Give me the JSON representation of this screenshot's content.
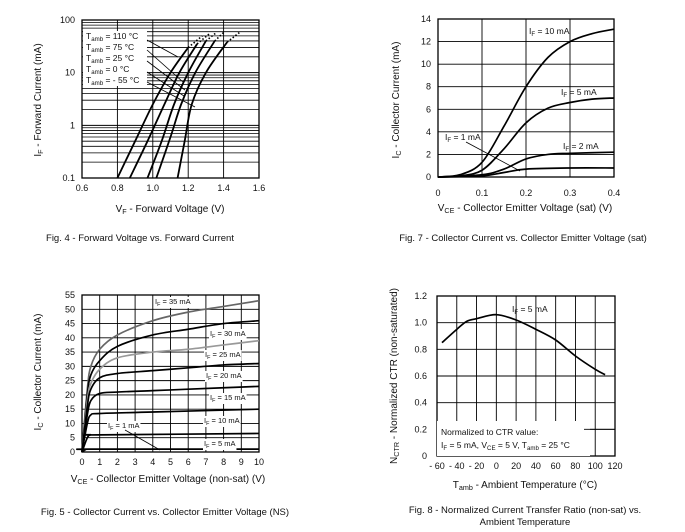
{
  "chart_data": [
    {
      "id": "fig4",
      "type": "line",
      "title": "Fig. 4 - Forward Voltage vs. Forward Current",
      "xlabel": [
        {
          "t": "V"
        },
        {
          "t": "F",
          "sub": true
        },
        {
          "t": " - Forward Voltage (V)"
        }
      ],
      "ylabel": [
        {
          "t": "I"
        },
        {
          "t": "F",
          "sub": true
        },
        {
          "t": " - Forward Current (mA)"
        }
      ],
      "xlim": [
        0.6,
        1.6
      ],
      "ylim": [
        0.1,
        100
      ],
      "yscale": "log",
      "xticks": [
        "0.6",
        "0.8",
        "1.0",
        "1.2",
        "1.4",
        "1.6"
      ],
      "yticks": [
        "0.1",
        "1",
        "10",
        "100"
      ],
      "grid": true,
      "legend_placement": "top-left",
      "series": [
        {
          "name": [
            {
              "t": "T"
            },
            {
              "t": "amb",
              "sub": true
            },
            {
              "t": " = 110 °C"
            }
          ],
          "points": [
            [
              0.8,
              0.1
            ],
            [
              0.9,
              0.5
            ],
            [
              1.0,
              2.5
            ],
            [
              1.1,
              10
            ],
            [
              1.2,
              30
            ],
            [
              1.28,
              50
            ]
          ]
        },
        {
          "name": [
            {
              "t": "T"
            },
            {
              "t": "amb",
              "sub": true
            },
            {
              "t": " = 75 °C"
            }
          ],
          "points": [
            [
              0.87,
              0.1
            ],
            [
              0.97,
              0.5
            ],
            [
              1.07,
              2.7
            ],
            [
              1.15,
              10
            ],
            [
              1.25,
              35
            ],
            [
              1.32,
              55
            ]
          ]
        },
        {
          "name": [
            {
              "t": "T"
            },
            {
              "t": "amb",
              "sub": true
            },
            {
              "t": " = 25 °C"
            }
          ],
          "points": [
            [
              0.97,
              0.1
            ],
            [
              1.05,
              0.5
            ],
            [
              1.12,
              2.5
            ],
            [
              1.2,
              10
            ],
            [
              1.3,
              40
            ],
            [
              1.36,
              58
            ]
          ]
        },
        {
          "name": [
            {
              "t": "T"
            },
            {
              "t": "amb",
              "sub": true
            },
            {
              "t": " = 0 °C"
            }
          ],
          "points": [
            [
              1.02,
              0.1
            ],
            [
              1.1,
              0.6
            ],
            [
              1.16,
              2.5
            ],
            [
              1.24,
              10
            ],
            [
              1.35,
              40
            ],
            [
              1.4,
              58
            ]
          ]
        },
        {
          "name": [
            {
              "t": "T"
            },
            {
              "t": "amb",
              "sub": true
            },
            {
              "t": " = - 55 °C"
            }
          ],
          "points": [
            [
              1.14,
              0.1
            ],
            [
              1.18,
              0.5
            ],
            [
              1.22,
              2.5
            ],
            [
              1.3,
              10
            ],
            [
              1.42,
              38
            ],
            [
              1.49,
              58
            ]
          ]
        }
      ]
    },
    {
      "id": "fig7",
      "type": "line",
      "title": "Fig. 7 - Collector Current vs. Collector Emitter Voltage (sat)",
      "xlabel": [
        {
          "t": "V"
        },
        {
          "t": "CE",
          "sub": true
        },
        {
          "t": " - Collector Emitter Voltage (sat) (V)"
        }
      ],
      "ylabel": [
        {
          "t": "I"
        },
        {
          "t": "C",
          "sub": true
        },
        {
          "t": " - Collector Current (mA)"
        }
      ],
      "xlim": [
        0,
        0.4
      ],
      "ylim": [
        0,
        14
      ],
      "xticks": [
        "0",
        "0.1",
        "0.2",
        "0.3",
        "0.4"
      ],
      "yticks": [
        "0",
        "2",
        "4",
        "6",
        "8",
        "10",
        "12",
        "14"
      ],
      "grid": true,
      "series": [
        {
          "name": [
            {
              "t": "I"
            },
            {
              "t": "F",
              "sub": true
            },
            {
              "t": " = 10 mA"
            }
          ],
          "points": [
            [
              0,
              0
            ],
            [
              0.05,
              0.2
            ],
            [
              0.1,
              1.3
            ],
            [
              0.15,
              4.5
            ],
            [
              0.2,
              8
            ],
            [
              0.25,
              10.6
            ],
            [
              0.3,
              12
            ],
            [
              0.35,
              12.7
            ],
            [
              0.4,
              13.1
            ]
          ]
        },
        {
          "name": [
            {
              "t": "I"
            },
            {
              "t": "F",
              "sub": true
            },
            {
              "t": " = 5 mA"
            }
          ],
          "points": [
            [
              0,
              0
            ],
            [
              0.05,
              0.1
            ],
            [
              0.1,
              0.6
            ],
            [
              0.15,
              2.5
            ],
            [
              0.2,
              4.8
            ],
            [
              0.25,
              6.1
            ],
            [
              0.3,
              6.6
            ],
            [
              0.35,
              6.9
            ],
            [
              0.4,
              7.0
            ]
          ]
        },
        {
          "name": [
            {
              "t": "I"
            },
            {
              "t": "F",
              "sub": true
            },
            {
              "t": " = 2 mA"
            }
          ],
          "points": [
            [
              0,
              0
            ],
            [
              0.1,
              0.2
            ],
            [
              0.15,
              0.7
            ],
            [
              0.2,
              1.6
            ],
            [
              0.25,
              2.0
            ],
            [
              0.3,
              2.1
            ],
            [
              0.4,
              2.2
            ]
          ]
        },
        {
          "name": [
            {
              "t": "I"
            },
            {
              "t": "F",
              "sub": true
            },
            {
              "t": " = 1 mA"
            }
          ],
          "points": [
            [
              0,
              0
            ],
            [
              0.1,
              0.1
            ],
            [
              0.15,
              0.4
            ],
            [
              0.2,
              0.7
            ],
            [
              0.3,
              0.8
            ],
            [
              0.4,
              0.8
            ]
          ]
        }
      ]
    },
    {
      "id": "fig5",
      "type": "line",
      "title": "Fig. 5 - Collector Current vs. Collector Emitter Voltage (NS)",
      "xlabel": [
        {
          "t": "V"
        },
        {
          "t": "CE",
          "sub": true
        },
        {
          "t": " - Collector Emitter Voltage (non-sat) (V)"
        }
      ],
      "ylabel": [
        {
          "t": "I"
        },
        {
          "t": "C",
          "sub": true
        },
        {
          "t": " - Collector Current (mA)"
        }
      ],
      "xlim": [
        0,
        10
      ],
      "ylim": [
        0,
        55
      ],
      "xticks": [
        "0",
        "1",
        "2",
        "3",
        "4",
        "5",
        "6",
        "7",
        "8",
        "9",
        "10"
      ],
      "yticks": [
        "0",
        "5",
        "10",
        "15",
        "20",
        "25",
        "30",
        "35",
        "40",
        "45",
        "50",
        "55"
      ],
      "grid": true,
      "series": [
        {
          "name": [
            {
              "t": "I"
            },
            {
              "t": "F",
              "sub": true
            },
            {
              "t": " = 35 mA"
            }
          ],
          "color": "#666666",
          "points": [
            [
              0,
              0
            ],
            [
              0.3,
              22
            ],
            [
              0.5,
              30
            ],
            [
              1,
              36
            ],
            [
              2,
              41
            ],
            [
              4,
              46
            ],
            [
              6,
              49
            ],
            [
              8,
              51
            ],
            [
              10,
              53
            ]
          ]
        },
        {
          "name": [
            {
              "t": "I"
            },
            {
              "t": "F",
              "sub": true
            },
            {
              "t": " = 30 mA"
            }
          ],
          "color": "#000000",
          "points": [
            [
              0,
              0
            ],
            [
              0.3,
              20
            ],
            [
              0.5,
              27
            ],
            [
              1,
              32
            ],
            [
              2,
              37
            ],
            [
              4,
              41
            ],
            [
              6,
              43
            ],
            [
              8,
              45
            ],
            [
              10,
              46
            ]
          ]
        },
        {
          "name": [
            {
              "t": "I"
            },
            {
              "t": "F",
              "sub": true
            },
            {
              "t": " = 25 mA"
            }
          ],
          "color": "#999999",
          "points": [
            [
              0,
              0
            ],
            [
              0.3,
              18
            ],
            [
              0.5,
              24
            ],
            [
              1,
              29
            ],
            [
              2,
              33
            ],
            [
              4,
              35
            ],
            [
              6,
              36
            ],
            [
              8,
              37.5
            ],
            [
              10,
              39
            ]
          ]
        },
        {
          "name": [
            {
              "t": "I"
            },
            {
              "t": "F",
              "sub": true
            },
            {
              "t": " = 20 mA"
            }
          ],
          "color": "#000000",
          "points": [
            [
              0,
              0
            ],
            [
              0.3,
              16
            ],
            [
              0.5,
              22
            ],
            [
              1,
              26
            ],
            [
              2,
              27.5
            ],
            [
              4,
              28.5
            ],
            [
              6,
              29.5
            ],
            [
              8,
              30.5
            ],
            [
              10,
              31
            ]
          ]
        },
        {
          "name": [
            {
              "t": "I"
            },
            {
              "t": "F",
              "sub": true
            },
            {
              "t": " = 15 mA"
            }
          ],
          "color": "#000000",
          "points": [
            [
              0,
              0
            ],
            [
              0.3,
              13
            ],
            [
              0.5,
              18
            ],
            [
              1,
              20.5
            ],
            [
              2,
              21
            ],
            [
              4,
              21.5
            ],
            [
              6,
              22
            ],
            [
              8,
              22.5
            ],
            [
              10,
              23
            ]
          ]
        },
        {
          "name": [
            {
              "t": "I"
            },
            {
              "t": "F",
              "sub": true
            },
            {
              "t": " = 10 mA"
            }
          ],
          "color": "#000000",
          "points": [
            [
              0,
              0
            ],
            [
              0.3,
              10
            ],
            [
              0.5,
              13
            ],
            [
              1,
              13.5
            ],
            [
              4,
              14
            ],
            [
              10,
              15
            ]
          ]
        },
        {
          "name": [
            {
              "t": "I"
            },
            {
              "t": "F",
              "sub": true
            },
            {
              "t": " = 5 mA"
            }
          ],
          "color": "#000000",
          "points": [
            [
              0,
              0
            ],
            [
              0.3,
              5
            ],
            [
              0.5,
              6
            ],
            [
              1,
              6
            ],
            [
              10,
              6.5
            ]
          ]
        },
        {
          "name": [
            {
              "t": "I"
            },
            {
              "t": "F",
              "sub": true
            },
            {
              "t": " = 1 mA"
            }
          ],
          "color": "#000000",
          "points": [
            [
              0,
              0
            ],
            [
              0.2,
              0.8
            ],
            [
              0.5,
              1
            ],
            [
              10,
              1
            ]
          ]
        }
      ]
    },
    {
      "id": "fig8",
      "type": "line",
      "title": "Fig. 8 - Normalized Current Transfer Ratio (non-sat) vs.",
      "title_line2": "Ambient Temperature",
      "xlabel": [
        {
          "t": "T"
        },
        {
          "t": "amb",
          "sub": true
        },
        {
          "t": " - Ambient Temperature (°C)"
        }
      ],
      "ylabel": [
        {
          "t": "N"
        },
        {
          "t": "CTR",
          "sub": true
        },
        {
          "t": " - Normalized CTR (non-saturated)"
        }
      ],
      "xlim": [
        -60,
        120
      ],
      "ylim": [
        0,
        1.2
      ],
      "xticks": [
        "- 60",
        "- 40",
        "- 20",
        "0",
        "20",
        "40",
        "60",
        "80",
        "100",
        "120"
      ],
      "yticks": [
        "0",
        "0.2",
        "0.4",
        "0.6",
        "0.8",
        "1.0",
        "1.2"
      ],
      "grid": true,
      "annotation_line1": "Normalized to CTR value:",
      "annotation_line2": [
        {
          "t": "I"
        },
        {
          "t": "F",
          "sub": true
        },
        {
          "t": " = 5 mA, V"
        },
        {
          "t": "CE",
          "sub": true
        },
        {
          "t": " = 5 V, T"
        },
        {
          "t": "amb",
          "sub": true
        },
        {
          "t": " = 25 °C"
        }
      ],
      "series": [
        {
          "name": [
            {
              "t": "I"
            },
            {
              "t": "F",
              "sub": true
            },
            {
              "t": " = 5 mA"
            }
          ],
          "points": [
            [
              -55,
              0.85
            ],
            [
              -40,
              0.95
            ],
            [
              -30,
              1.01
            ],
            [
              -20,
              1.03
            ],
            [
              0,
              1.06
            ],
            [
              20,
              1.02
            ],
            [
              40,
              0.95
            ],
            [
              60,
              0.87
            ],
            [
              80,
              0.75
            ],
            [
              100,
              0.65
            ],
            [
              110,
              0.61
            ]
          ]
        }
      ]
    }
  ]
}
